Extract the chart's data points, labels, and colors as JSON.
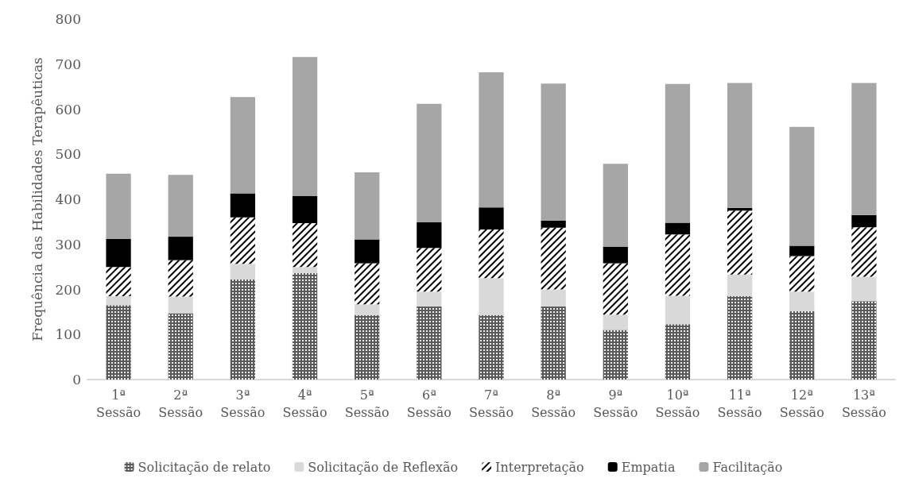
{
  "chart_data": {
    "type": "bar",
    "stacked": true,
    "ylabel": "Frequência das Habilidades Terapêuticas",
    "categories": [
      "1ª Sessão",
      "2ª Sessão",
      "3ª Sessão",
      "4ª Sessão",
      "5ª Sessão",
      "6ª Sessão",
      "7ª Sessão",
      "8ª Sessão",
      "9ª Sessão",
      "10ª Sessão",
      "11ª Sessão",
      "12ª Sessão",
      "13ª Sessão"
    ],
    "series": [
      {
        "name": "Solicitação de relato",
        "color": "#595959",
        "values": [
          165,
          147,
          222,
          236,
          143,
          162,
          143,
          162,
          110,
          123,
          185,
          152,
          174
        ]
      },
      {
        "name": "Solicitação de Reflexão",
        "color": "#d9d9d9",
        "values": [
          20,
          37,
          35,
          14,
          24,
          33,
          82,
          38,
          34,
          63,
          48,
          43,
          54
        ]
      },
      {
        "name": "Interpretação",
        "color": "#ffffff",
        "values": [
          65,
          81,
          103,
          97,
          91,
          97,
          108,
          137,
          114,
          136,
          142,
          79,
          110
        ]
      },
      {
        "name": "Empatia",
        "color": "#000000",
        "values": [
          62,
          52,
          53,
          60,
          53,
          57,
          49,
          16,
          37,
          26,
          6,
          23,
          27
        ]
      },
      {
        "name": "Facilitação",
        "color": "#a6a6a6",
        "values": [
          145,
          137,
          214,
          309,
          149,
          263,
          300,
          304,
          184,
          308,
          277,
          264,
          293
        ]
      }
    ],
    "ylim": [
      0,
      800
    ],
    "yticks": [
      0,
      100,
      200,
      300,
      400,
      500,
      600,
      700,
      800
    ],
    "grid": false,
    "legend": "bottom"
  }
}
